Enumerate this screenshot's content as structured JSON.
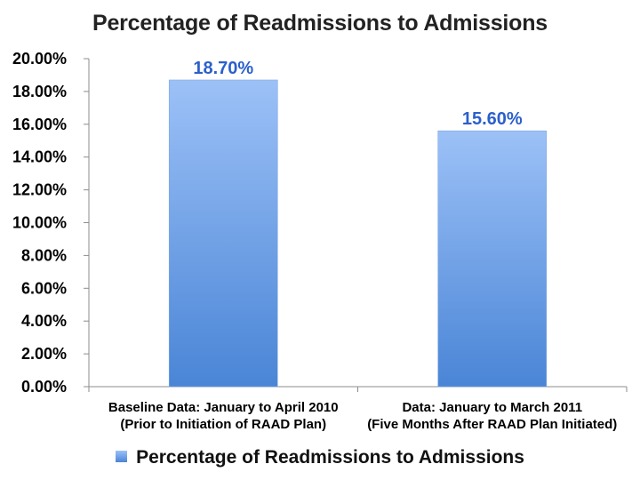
{
  "chart_data": {
    "type": "bar",
    "title": "Percentage of Readmissions to Admissions",
    "categories": [
      [
        "Baseline Data: January to April 2010",
        "(Prior to Initiation of RAAD Plan)"
      ],
      [
        "Data: January to March 2011",
        "(Five Months After RAAD Plan Initiated)"
      ]
    ],
    "series": [
      {
        "name": "Percentage of Readmissions to Admissions",
        "values": [
          18.7,
          15.6
        ],
        "labels": [
          "18.70%",
          "15.60%"
        ]
      }
    ],
    "ylim": [
      0,
      20
    ],
    "yticks": [
      "0.00%",
      "2.00%",
      "4.00%",
      "6.00%",
      "8.00%",
      "10.00%",
      "12.00%",
      "14.00%",
      "16.00%",
      "18.00%",
      "20.00%"
    ],
    "grid": false,
    "legend_position": "bottom",
    "colors": {
      "bar_top": "#9cc1f7",
      "bar_bottom": "#4a85d6",
      "data_label": "#2b5fcc",
      "axis": "#8c8c8c"
    }
  }
}
